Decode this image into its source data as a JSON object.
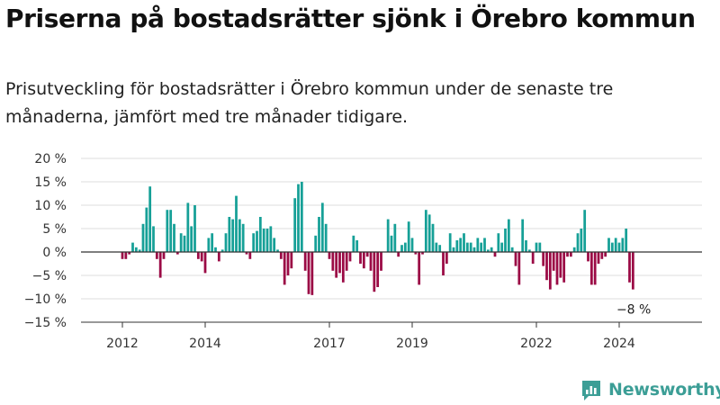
{
  "title": "Priserna på bostadsrätter sjönk i Örebro kommun",
  "subtitle": "Prisutveckling för bostadsrätter i Örebro kommun under de senaste tre månaderna, jämfört med tre månader tidigare.",
  "brand": "Newsworthy",
  "colors": {
    "positive": "#16a097",
    "negative": "#9b0a45",
    "axis": "#333333",
    "grid": "#dddddd",
    "brand": "#3c9e96"
  },
  "chart_data": {
    "type": "bar",
    "title": "",
    "xlabel": "",
    "ylabel": "",
    "ylim": [
      -15,
      20
    ],
    "y_ticks": [
      20,
      15,
      10,
      5,
      0,
      -5,
      -10,
      -15
    ],
    "y_tick_labels": [
      "20 %",
      "15 %",
      "10 %",
      "5 %",
      "0 %",
      "−5 %",
      "−10 %",
      "−15 %"
    ],
    "x_ticks": [
      {
        "label": "2012",
        "x": 2012
      },
      {
        "label": "2014",
        "x": 2014
      },
      {
        "label": "2017",
        "x": 2017
      },
      {
        "label": "2019",
        "x": 2019
      },
      {
        "label": "2022",
        "x": 2022
      },
      {
        "label": "2024",
        "x": 2024
      }
    ],
    "x_range": [
      2011.0,
      2026.0
    ],
    "grid": true,
    "legend": "none",
    "start_year": 2011.5,
    "months_per_bar": 1,
    "values": [
      0,
      0,
      0,
      0,
      0,
      0,
      -1.5,
      -1.5,
      -0.5,
      2,
      1,
      0.5,
      6,
      9.5,
      14,
      5.5,
      -1.5,
      -5.5,
      -1.5,
      9,
      9,
      6,
      -0.5,
      4,
      3.5,
      10.5,
      5.5,
      10,
      -1.5,
      -2,
      -4.5,
      3,
      4,
      1,
      -2,
      0.5,
      4,
      7.5,
      7,
      12,
      7,
      6,
      -0.5,
      -1.5,
      4,
      4.5,
      7.5,
      5,
      5,
      5.5,
      3,
      0.5,
      -1.5,
      -7,
      -5,
      -3.5,
      11.5,
      14.5,
      15,
      -4,
      -9,
      -9.2,
      3.5,
      7.5,
      10.5,
      6,
      -1.5,
      -4,
      -5.5,
      -4.5,
      -6.5,
      -4,
      -2,
      3.5,
      2.5,
      -2.5,
      -3.5,
      -1,
      -4,
      -8.5,
      -7.5,
      -4,
      0,
      7,
      3.5,
      6,
      -1,
      1.5,
      2,
      6.5,
      3,
      -0.5,
      -7,
      -0.5,
      9,
      8,
      6,
      2,
      1.5,
      -5,
      -2.5,
      4,
      1,
      2.5,
      3,
      4,
      2,
      2,
      1,
      3,
      2,
      3,
      0.5,
      1,
      -1,
      4,
      2,
      5,
      7,
      1,
      -3,
      -7,
      7,
      2.5,
      0.5,
      -2.5,
      2,
      2,
      -3,
      -6,
      -8,
      -4,
      -7,
      -5.5,
      -6.5,
      -1,
      -1,
      1,
      4,
      5,
      9,
      -2,
      -7,
      -7,
      -2.5,
      -1.5,
      -1,
      3,
      2,
      3,
      2,
      3,
      5,
      -6.5,
      -8
    ],
    "annotations": [
      {
        "text": "−8 %",
        "at": "last_bar"
      }
    ]
  }
}
